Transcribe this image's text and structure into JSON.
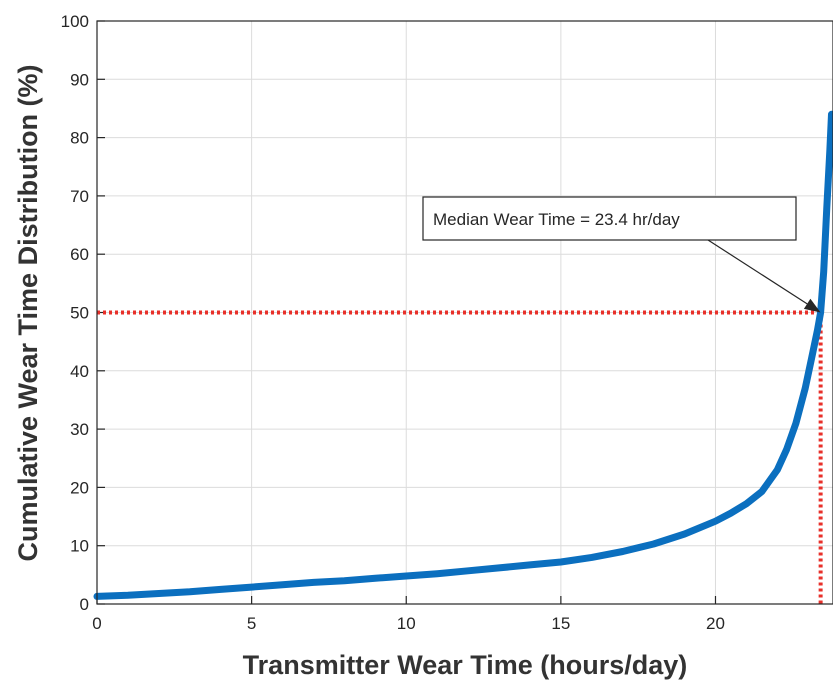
{
  "chart_data": {
    "type": "line",
    "xlabel": "Transmitter Wear Time (hours/day)",
    "ylabel": "Cumulative Wear Time Distribution (%)",
    "xlim": [
      0,
      23.8
    ],
    "ylim": [
      0,
      100
    ],
    "xticks": [
      "0",
      "5",
      "10",
      "15",
      "20"
    ],
    "yticks": [
      "0",
      "10",
      "20",
      "30",
      "40",
      "50",
      "60",
      "70",
      "80",
      "90",
      "100"
    ],
    "grid": true,
    "series": [
      {
        "color": "#0b6fbf",
        "x": [
          0,
          1,
          2,
          3,
          4,
          5,
          6,
          7,
          8,
          9,
          10,
          11,
          12,
          13,
          14,
          15,
          16,
          17,
          18,
          19,
          20,
          20.5,
          21,
          21.5,
          22,
          22.3,
          22.6,
          22.9,
          23.1,
          23.3,
          23.4,
          23.5,
          23.6,
          23.7,
          23.75
        ],
        "y": [
          1.3,
          1.5,
          1.8,
          2.1,
          2.5,
          2.9,
          3.3,
          3.7,
          4.0,
          4.4,
          4.8,
          5.2,
          5.7,
          6.2,
          6.7,
          7.2,
          8.0,
          9.0,
          10.3,
          12.0,
          14.2,
          15.6,
          17.2,
          19.3,
          23.0,
          26.5,
          31.0,
          37.0,
          42.0,
          47.0,
          50.0,
          57.0,
          68.0,
          78.0,
          84.0
        ]
      }
    ],
    "reference_lines": [
      {
        "type": "horizontal",
        "y": 50,
        "color": "#e8302a"
      },
      {
        "type": "vertical",
        "x": 23.4,
        "color": "#e8302a"
      }
    ],
    "annotations": [
      {
        "text": "Median Wear Time = 23.4 hr/day",
        "point_x": 23.4,
        "point_y": 50
      }
    ]
  }
}
